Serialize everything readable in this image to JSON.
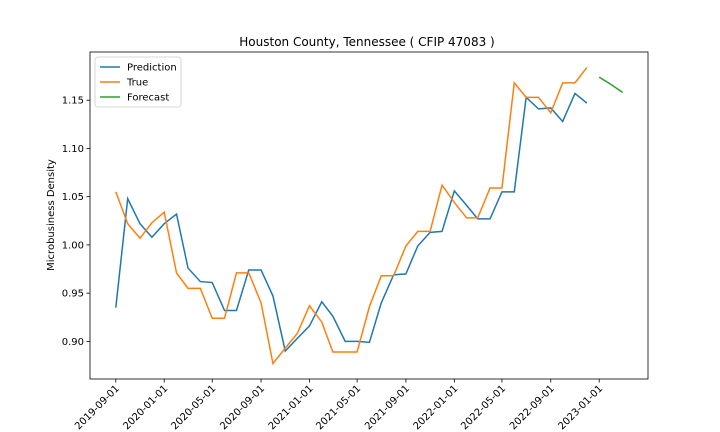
{
  "chart_data": {
    "type": "line",
    "title": "Houston County, Tennessee ( CFIP 47083 )",
    "y_label": "Microbusiness Density",
    "x": [
      "2019-09-01",
      "2019-10-01",
      "2019-11-01",
      "2019-12-01",
      "2020-01-01",
      "2020-02-01",
      "2020-03-01",
      "2020-04-01",
      "2020-05-01",
      "2020-06-01",
      "2020-07-01",
      "2020-08-01",
      "2020-09-01",
      "2020-10-01",
      "2020-11-01",
      "2020-12-01",
      "2021-01-01",
      "2021-02-01",
      "2021-03-01",
      "2021-04-01",
      "2021-05-01",
      "2021-06-01",
      "2021-07-01",
      "2021-08-01",
      "2021-09-01",
      "2021-10-01",
      "2021-11-01",
      "2021-12-01",
      "2022-01-01",
      "2022-02-01",
      "2022-03-01",
      "2022-04-01",
      "2022-05-01",
      "2022-06-01",
      "2022-07-01",
      "2022-08-01",
      "2022-09-01",
      "2022-10-01",
      "2022-11-01",
      "2022-12-01",
      "2023-01-01",
      "2023-02-01",
      "2023-03-01"
    ],
    "series": [
      {
        "name": "Prediction",
        "color": "#1f77b4",
        "values": [
          0.935,
          1.048,
          1.022,
          1.008,
          1.022,
          1.032,
          0.976,
          0.962,
          0.961,
          0.932,
          0.932,
          0.974,
          0.974,
          0.947,
          0.89,
          0.903,
          0.916,
          0.941,
          0.926,
          0.9,
          0.9,
          0.899,
          0.94,
          0.969,
          0.97,
          0.999,
          1.013,
          1.014,
          1.056,
          1.041,
          1.027,
          1.027,
          1.055,
          1.055,
          1.153,
          1.141,
          1.142,
          1.128,
          1.157,
          1.147,
          null,
          null,
          null
        ]
      },
      {
        "name": "True",
        "color": "#ff7f0e",
        "values": [
          1.055,
          1.022,
          1.007,
          1.023,
          1.034,
          0.971,
          0.955,
          0.955,
          0.924,
          0.924,
          0.971,
          0.971,
          0.94,
          0.877,
          0.893,
          0.908,
          0.937,
          0.92,
          0.889,
          0.889,
          0.889,
          0.936,
          0.968,
          0.968,
          0.999,
          1.014,
          1.014,
          1.062,
          1.044,
          1.028,
          1.028,
          1.059,
          1.059,
          1.168,
          1.153,
          1.153,
          1.137,
          1.168,
          1.168,
          1.184,
          null,
          null,
          null
        ]
      },
      {
        "name": "Forecast",
        "color": "#2ca02c",
        "values": [
          null,
          null,
          null,
          null,
          null,
          null,
          null,
          null,
          null,
          null,
          null,
          null,
          null,
          null,
          null,
          null,
          null,
          null,
          null,
          null,
          null,
          null,
          null,
          null,
          null,
          null,
          null,
          null,
          null,
          null,
          null,
          null,
          null,
          null,
          null,
          null,
          null,
          null,
          null,
          null,
          1.174,
          1.166,
          1.158
        ]
      }
    ],
    "xlim": [
      "2019-06-28",
      "2023-05-04"
    ],
    "xticks": [
      "2019-09-01",
      "2020-01-01",
      "2020-05-01",
      "2020-09-01",
      "2021-01-01",
      "2021-05-01",
      "2021-09-01",
      "2022-01-01",
      "2022-05-01",
      "2022-09-01",
      "2023-01-01"
    ],
    "ylim": [
      0.861,
      1.2
    ],
    "yticks": [
      {
        "value": 0.9,
        "label": "0.90"
      },
      {
        "value": 0.95,
        "label": "0.95"
      },
      {
        "value": 1.0,
        "label": "1.00"
      },
      {
        "value": 1.05,
        "label": "1.05"
      },
      {
        "value": 1.1,
        "label": "1.10"
      },
      {
        "value": 1.15,
        "label": "1.15"
      }
    ],
    "legend": "upper left"
  }
}
